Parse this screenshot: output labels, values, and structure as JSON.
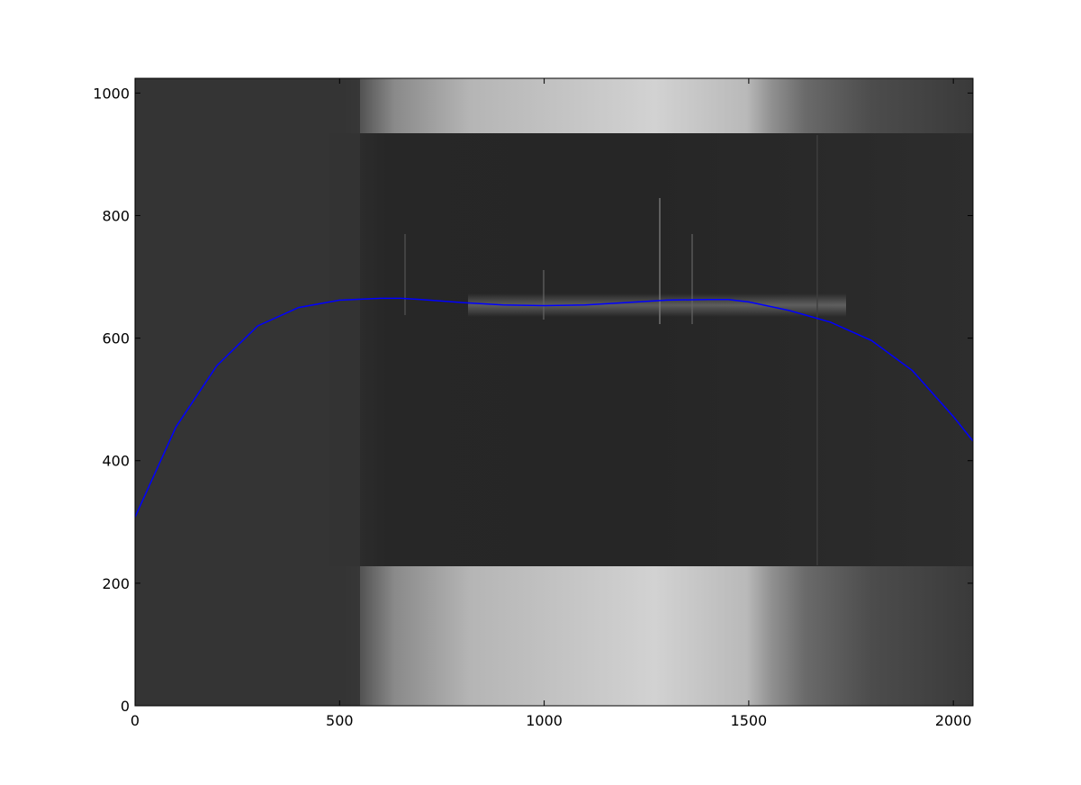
{
  "chart_data": {
    "type": "line",
    "title": "",
    "xlabel": "",
    "ylabel": "",
    "xlim": [
      0,
      2048
    ],
    "ylim": [
      0,
      1024
    ],
    "x_ticks": [
      0,
      500,
      1000,
      1500,
      2000
    ],
    "y_ticks": [
      0,
      200,
      400,
      600,
      800,
      1000
    ],
    "background": "grayscale spectrum image",
    "grid": false,
    "series": [
      {
        "color": "#0000ff",
        "x": [
          0,
          100,
          200,
          300,
          400,
          500,
          600,
          650,
          700,
          800,
          900,
          1000,
          1100,
          1200,
          1300,
          1400,
          1450,
          1500,
          1600,
          1700,
          1800,
          1900,
          2000,
          2048
        ],
        "y": [
          308,
          455,
          555,
          620,
          650,
          662,
          665,
          665,
          663,
          658,
          654,
          653,
          654,
          658,
          662,
          663,
          663,
          659,
          645,
          626,
          596,
          547,
          472,
          432
        ]
      }
    ]
  }
}
